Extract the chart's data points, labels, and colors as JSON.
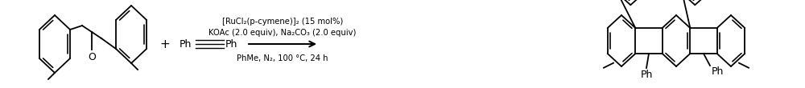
{
  "fig_width": 10.0,
  "fig_height": 1.1,
  "dpi": 100,
  "background": "#ffffff",
  "line_color": "#000000",
  "lw": 1.3,
  "condition_line1": "[RuCl₂(p-cymene)]₂ (15 mol%)",
  "condition_line2": "KOAc (2.0 equiv), Na₂CO₃ (2.0 equiv)",
  "condition_line3": "PhMe, N₂, 100 °C, 24 h",
  "cond_fontsize": 7.2,
  "label_fontsize": 9.0,
  "plus_fontsize": 11
}
